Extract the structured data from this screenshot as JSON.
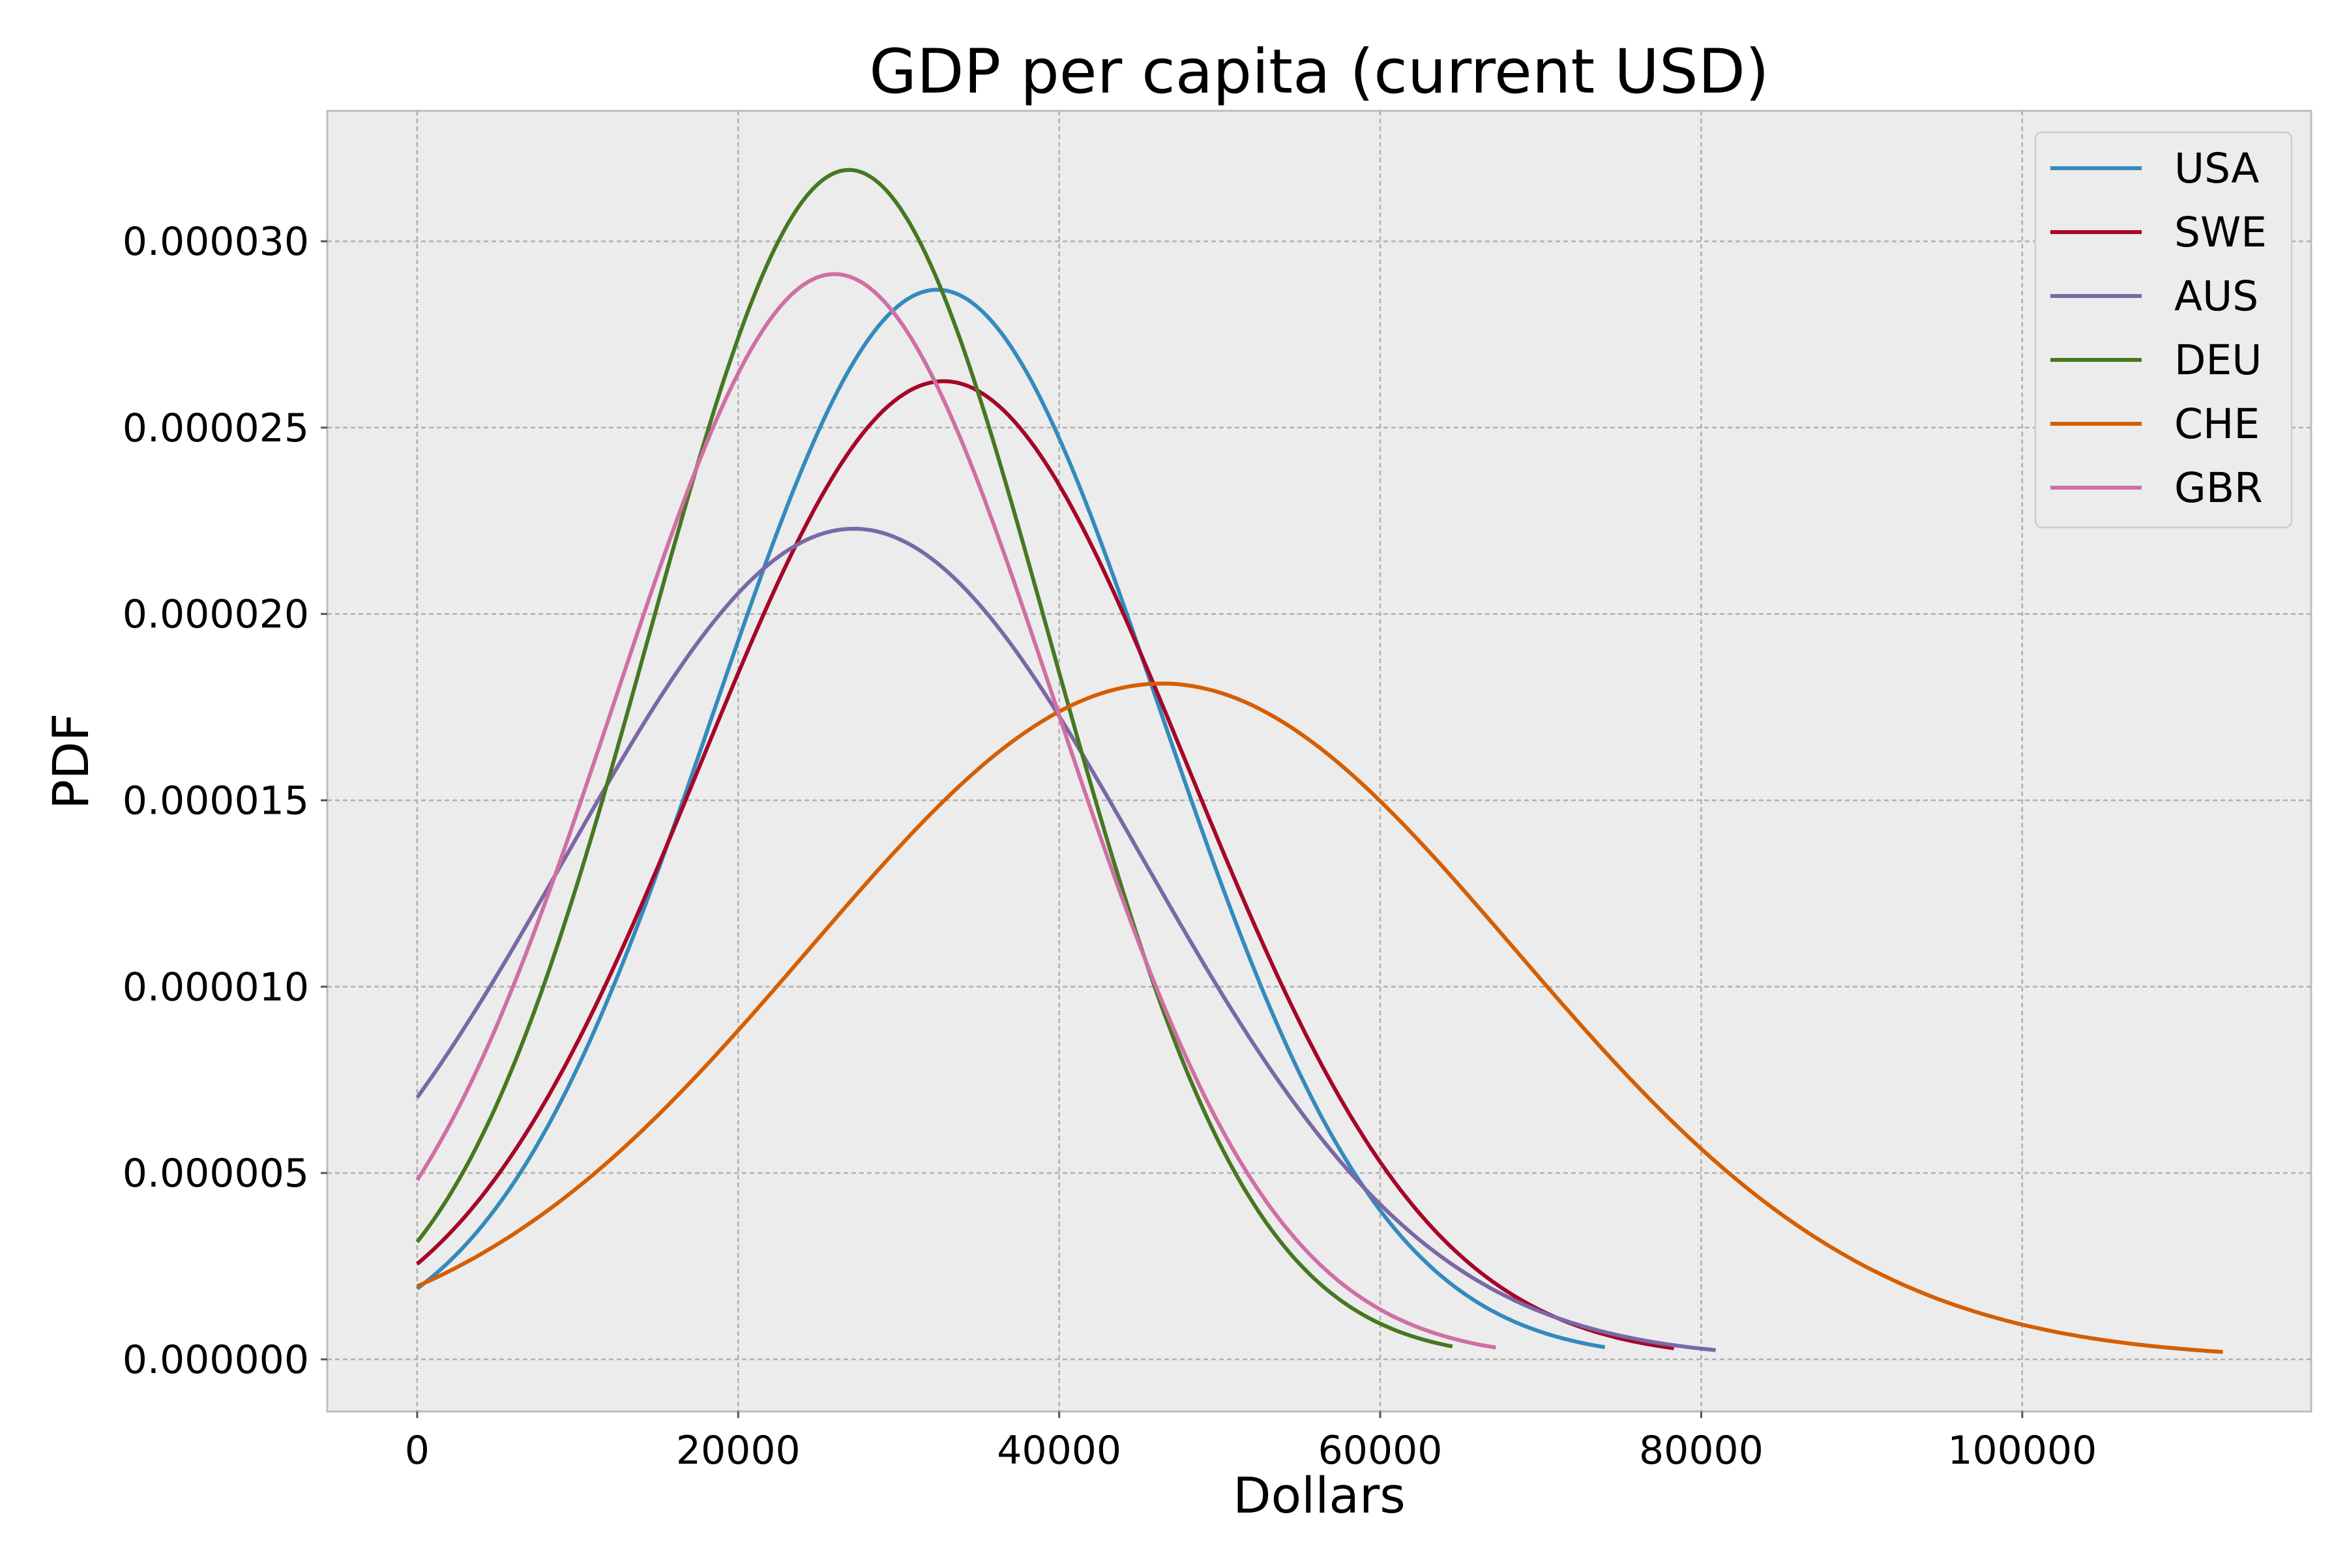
{
  "chart_data": {
    "type": "line",
    "title": "GDP per capita (current USD)",
    "xlabel": "Dollars",
    "ylabel": "PDF",
    "xlim": [
      -5600,
      118000
    ],
    "ylim": [
      -1.4e-06,
      3.35e-05
    ],
    "xticks": [
      0,
      20000,
      40000,
      60000,
      80000,
      100000
    ],
    "xtick_labels": [
      "0",
      "20000",
      "40000",
      "60000",
      "80000",
      "100000"
    ],
    "yticks": [
      0,
      5e-06,
      1e-05,
      1.5e-05,
      2e-05,
      2.5e-05,
      3e-05
    ],
    "ytick_labels": [
      "0.000000",
      "0.000005",
      "0.000010",
      "0.000015",
      "0.000020",
      "0.000025",
      "0.000030"
    ],
    "grid": true,
    "legend_position": "top-right",
    "background_color": "#ececec",
    "series": [
      {
        "name": "USA",
        "color": "#348abd",
        "distribution": "normal",
        "mean": 32400,
        "sd": 13900,
        "x_range": [
          0,
          74000
        ],
        "points": [
          [
            0,
            1.9e-06
          ],
          [
            10000,
            7.8e-06
          ],
          [
            20000,
            1.92e-05
          ],
          [
            32400,
            2.87e-05
          ],
          [
            40000,
            2.45e-05
          ],
          [
            50000,
            1.29e-05
          ],
          [
            60000,
            4.3e-06
          ],
          [
            74000,
            3e-07
          ]
        ]
      },
      {
        "name": "SWE",
        "color": "#a60628",
        "distribution": "normal",
        "mean": 32800,
        "sd": 15200,
        "x_range": [
          0,
          78300
        ],
        "points": [
          [
            0,
            2.6e-06
          ],
          [
            10000,
            8.5e-06
          ],
          [
            20000,
            1.85e-05
          ],
          [
            32800,
            2.63e-05
          ],
          [
            40000,
            2.34e-05
          ],
          [
            50000,
            1.38e-05
          ],
          [
            60000,
            5.3e-06
          ],
          [
            78300,
            3e-07
          ]
        ]
      },
      {
        "name": "AUS",
        "color": "#7a68a6",
        "distribution": "normal",
        "mean": 27200,
        "sd": 17900,
        "x_range": [
          0,
          80900
        ],
        "points": [
          [
            0,
            7.1e-06
          ],
          [
            10000,
            1.41e-05
          ],
          [
            20000,
            2.06e-05
          ],
          [
            27200,
            2.23e-05
          ],
          [
            40000,
            1.72e-05
          ],
          [
            50000,
            9.9e-06
          ],
          [
            60000,
            4.2e-06
          ],
          [
            80900,
            3e-07
          ]
        ]
      },
      {
        "name": "DEU",
        "color": "#467821",
        "distribution": "normal",
        "mean": 26900,
        "sd": 12500,
        "x_range": [
          0,
          64500
        ],
        "points": [
          [
            0,
            3.2e-06
          ],
          [
            10000,
            1.28e-05
          ],
          [
            20000,
            2.74e-05
          ],
          [
            26900,
            3.2e-05
          ],
          [
            40000,
            1.85e-05
          ],
          [
            50000,
            5.8e-06
          ],
          [
            64500,
            4e-07
          ]
        ]
      },
      {
        "name": "CHE",
        "color": "#d55e00",
        "distribution": "normal",
        "mean": 46400,
        "sd": 22000,
        "x_range": [
          0,
          112500
        ],
        "points": [
          [
            0,
            2e-06
          ],
          [
            20000,
            8.8e-06
          ],
          [
            46400,
            1.81e-05
          ],
          [
            60000,
            1.5e-05
          ],
          [
            80000,
            5.6e-06
          ],
          [
            100000,
            1e-06
          ],
          [
            112500,
            2e-07
          ]
        ]
      },
      {
        "name": "GBR",
        "color": "#cf6fa4",
        "distribution": "normal",
        "mean": 26000,
        "sd": 13700,
        "x_range": [
          0,
          67200
        ],
        "points": [
          [
            0,
            4.9e-06
          ],
          [
            10000,
            1.46e-05
          ],
          [
            20000,
            2.63e-05
          ],
          [
            26000,
            2.9e-05
          ],
          [
            40000,
            1.7e-05
          ],
          [
            50000,
            6.3e-06
          ],
          [
            67200,
            3e-07
          ]
        ]
      }
    ]
  }
}
